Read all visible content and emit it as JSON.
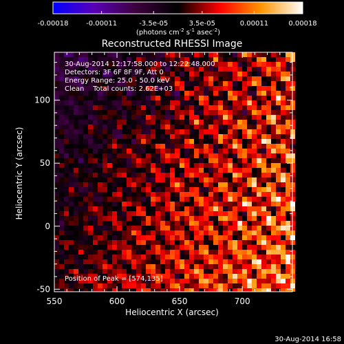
{
  "chart_data": {
    "type": "heatmap",
    "title": "Reconstructed RHESSI Image",
    "xlabel": "Heliocentric X (arcsec)",
    "ylabel": "Heliocentric Y (arcsec)",
    "xlim": [
      550,
      740
    ],
    "ylim": [
      -52,
      138
    ],
    "x_ticks": [
      550,
      600,
      650,
      700
    ],
    "y_ticks": [
      -50,
      0,
      50,
      100
    ],
    "colorbar": {
      "range": [
        -0.00018,
        0.00018
      ],
      "tick_values": [
        -0.00018,
        -0.00011,
        -3.5e-05,
        3.5e-05,
        0.00011,
        0.00018
      ],
      "tick_labels": [
        "-0.00018",
        "-0.00011",
        "-3.5e-05",
        "3.5e-05",
        "0.00011",
        "0.00018"
      ],
      "unit_main": "(photons cm",
      "unit_sup1": "-2",
      "unit_mid1": " s",
      "unit_sup2": "-1",
      "unit_mid2": " asec",
      "unit_sup3": "-2",
      "unit_end": ")",
      "colors": [
        "#0000ff",
        "#5a00b4",
        "#3c003c",
        "#000000",
        "#ff0000",
        "#ff9600",
        "#ffffff"
      ]
    },
    "annotations": [
      "30-Aug-2014 12:17:58.000 to 12:22:48.000",
      "Detectors: 3F 6F 8F 9F, Att 0",
      "Energy Range: 25.0 - 50.0 keV",
      "Clean    Total counts: 2.62E+03"
    ],
    "peak_label": "Position of Peak = [574,135]",
    "peak_position": [
      574,
      135
    ]
  },
  "footer_timestamp": "30-Aug-2014 16:58"
}
